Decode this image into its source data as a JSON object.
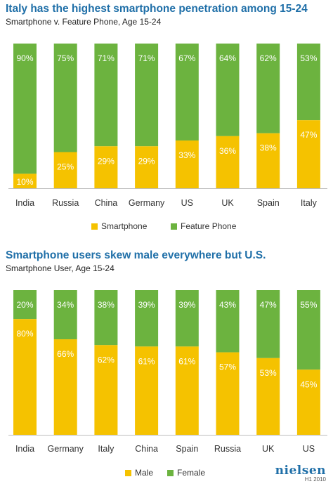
{
  "chart_data": [
    {
      "type": "bar",
      "stacked": true,
      "title": "Italy has the highest smartphone penetration among 15-24",
      "subtitle": "Smartphone v. Feature Phone, Age 15-24",
      "categories": [
        "India",
        "Russia",
        "China",
        "Germany",
        "US",
        "UK",
        "Spain",
        "Italy"
      ],
      "series": [
        {
          "name": "Smartphone",
          "color": "#f5c200",
          "values": [
            10,
            25,
            29,
            29,
            33,
            36,
            38,
            47
          ]
        },
        {
          "name": "Feature Phone",
          "color": "#6cb33f",
          "values": [
            90,
            75,
            71,
            71,
            67,
            64,
            62,
            53
          ]
        }
      ],
      "value_suffix": "%",
      "ylim": [
        0,
        100
      ],
      "grid": false,
      "legend_position": "bottom"
    },
    {
      "type": "bar",
      "stacked": true,
      "title": "Smartphone users skew male everywhere but U.S.",
      "subtitle": "Smartphone User, Age 15-24",
      "categories": [
        "India",
        "Germany",
        "Italy",
        "China",
        "Spain",
        "Russia",
        "UK",
        "US"
      ],
      "series": [
        {
          "name": "Male",
          "color": "#f5c200",
          "values": [
            80,
            66,
            62,
            61,
            61,
            57,
            53,
            45
          ]
        },
        {
          "name": "Female",
          "color": "#6cb33f",
          "values": [
            20,
            34,
            38,
            39,
            39,
            43,
            47,
            55
          ]
        }
      ],
      "value_suffix": "%",
      "ylim": [
        0,
        100
      ],
      "grid": false,
      "legend_position": "bottom"
    }
  ],
  "branding": {
    "logo_text": "nielsen",
    "period": "H1 2010"
  }
}
